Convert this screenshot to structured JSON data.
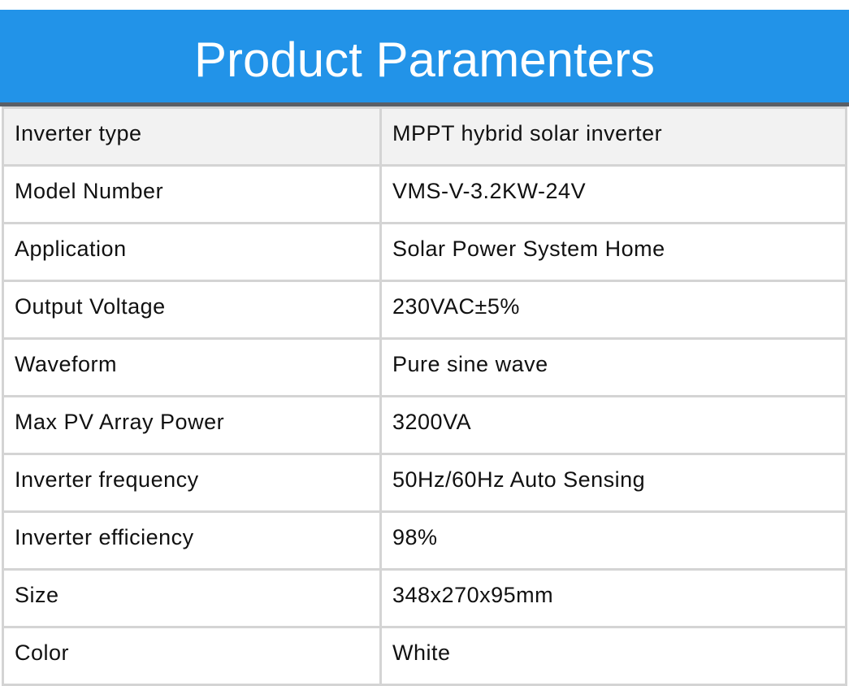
{
  "header": {
    "title": "Product Paramenters"
  },
  "table": {
    "rows": [
      [
        "Inverter type",
        "MPPT hybrid solar inverter"
      ],
      [
        "Model Number",
        "VMS-V-3.2KW-24V"
      ],
      [
        "Application",
        "Solar Power System Home"
      ],
      [
        "Output Voltage",
        "230VAC±5%"
      ],
      [
        "Waveform",
        "Pure sine wave"
      ],
      [
        "Max PV Array Power",
        "3200VA"
      ],
      [
        "Inverter frequency",
        "50Hz/60Hz Auto Sensing"
      ],
      [
        "Inverter efficiency",
        "98%"
      ],
      [
        "Size",
        "348x270x95mm"
      ],
      [
        "Color",
        "White"
      ]
    ]
  }
}
